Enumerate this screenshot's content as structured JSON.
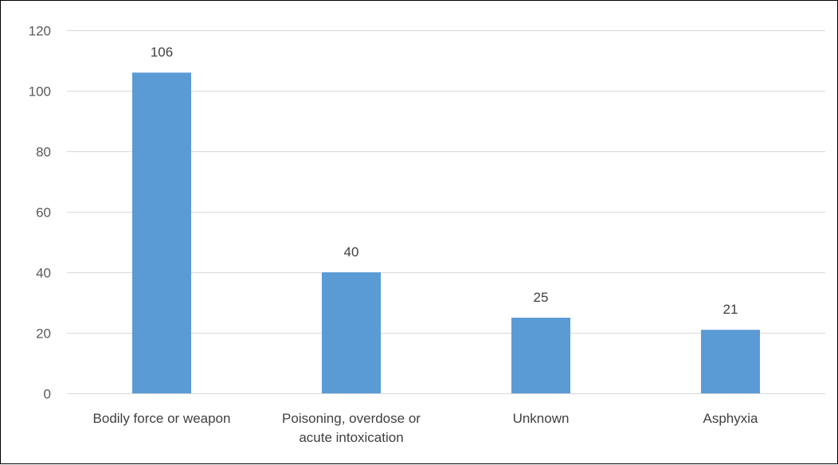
{
  "chart_data": {
    "type": "bar",
    "title": "",
    "xlabel": "",
    "ylabel": "",
    "categories": [
      [
        "Bodily force or weapon"
      ],
      [
        "Poisoning, overdose or",
        "acute intoxication"
      ],
      [
        "Unknown"
      ],
      [
        "Asphyxia"
      ]
    ],
    "values": [
      106,
      40,
      25,
      21
    ],
    "data_labels": [
      "106",
      "40",
      "25",
      "21"
    ],
    "ylim": [
      0,
      120
    ],
    "yticks": [
      0,
      20,
      40,
      60,
      80,
      100,
      120
    ],
    "grid": true,
    "legend": "none",
    "bar_color": "#5B9BD5",
    "grid_color": "#D9D9D9"
  }
}
